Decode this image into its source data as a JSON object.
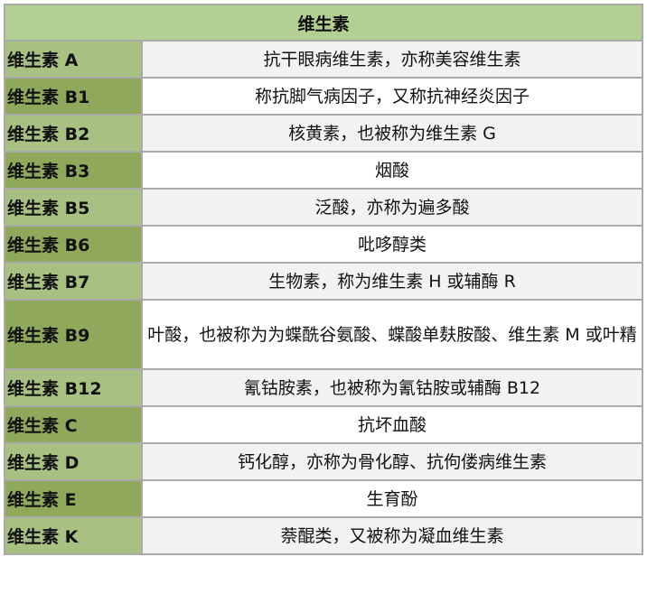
{
  "title": "维生素",
  "rows": [
    {
      "name": "维生素 A",
      "desc": "抗干眼病维生素，亦称美容维生素"
    },
    {
      "name": "维生素 B1",
      "desc": "称抗脚气病因子，又称抗神经炎因子"
    },
    {
      "name": "维生素 B2",
      "desc": "核黄素，也被称为维生素 G"
    },
    {
      "name": "维生素 B3",
      "desc": "烟酸"
    },
    {
      "name": "维生素 B5",
      "desc": "泛酸，亦称为遍多酸"
    },
    {
      "name": "维生素 B6",
      "desc": "吡哆醇类"
    },
    {
      "name": "维生素 B7",
      "desc": "生物素，称为维生素 H 或辅酶 R"
    },
    {
      "name": "维生素 B9",
      "desc": "叶酸，也被称为为蝶酰谷氨酸、蝶酸单麸胺酸、维生素 M 或叶精"
    },
    {
      "name": "维生素 B12",
      "desc": "氰钴胺素，也被称为氰钴胺或辅酶 B12"
    },
    {
      "name": "维生素 C",
      "desc": "抗坏血酸"
    },
    {
      "name": "维生素 D",
      "desc": "钙化醇，亦称为骨化醇、抗佝偻病维生素"
    },
    {
      "name": "维生素 E",
      "desc": "生育酚"
    },
    {
      "name": "维生素 K",
      "desc": "萘醌类，又被称为凝血维生素"
    }
  ],
  "colors": {
    "header": "#b3cf94",
    "key_dark": "#8fa85c",
    "key_light": "#a9c083",
    "row_alt": "#f2f2f2"
  }
}
